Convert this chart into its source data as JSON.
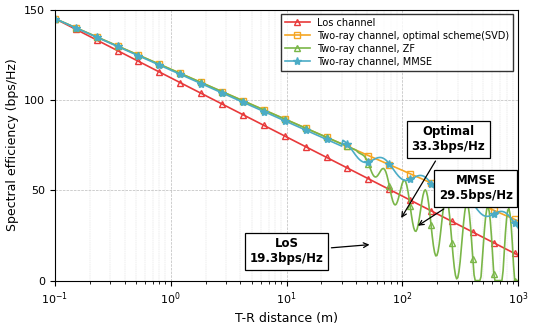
{
  "title": "",
  "xlabel": "T-R distance (m)",
  "ylabel": "Spectral efficiency (bps/Hz)",
  "xlim": [
    0.1,
    1000
  ],
  "ylim": [
    0,
    150
  ],
  "yticks": [
    0,
    50,
    100,
    150
  ],
  "legend": [
    "Los channel",
    "Two-ray channel, optimal scheme(SVD)",
    "Two-ray channel, ZF",
    "Two-ray channel, MMSE"
  ],
  "colors": {
    "los": "#e8393a",
    "svd": "#f5a623",
    "zf": "#7ab648",
    "mmse": "#4bacc6"
  },
  "annotation_optimal": "Optimal\n33.3bps/Hz",
  "annotation_mmse": "MMSE\n29.5bps/Hz",
  "annotation_los": "LoS\n19.3bps/Hz",
  "background_color": "#ffffff",
  "grid_color": "#aaaaaa"
}
